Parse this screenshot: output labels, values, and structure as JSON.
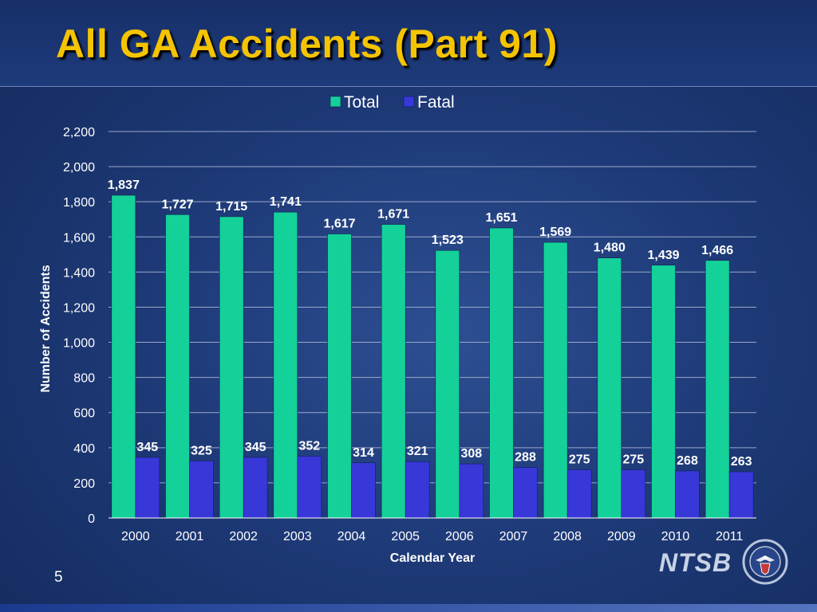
{
  "slide": {
    "title": "All GA Accidents (Part 91)",
    "page_number": "5",
    "logo_text": "NTSB"
  },
  "colors": {
    "total": "#14d19a",
    "fatal": "#3838d8",
    "title": "#f5c400"
  },
  "chart_data": {
    "type": "bar",
    "categories": [
      "2000",
      "2001",
      "2002",
      "2003",
      "2004",
      "2005",
      "2006",
      "2007",
      "2008",
      "2009",
      "2010",
      "2011"
    ],
    "series": [
      {
        "name": "Total",
        "values": [
          1837,
          1727,
          1715,
          1741,
          1617,
          1671,
          1523,
          1651,
          1569,
          1480,
          1439,
          1466
        ],
        "labels": [
          "1,837",
          "1,727",
          "1,715",
          "1,741",
          "1,617",
          "1,671",
          "1,523",
          "1,651",
          "1,569",
          "1,480",
          "1,439",
          "1,466"
        ]
      },
      {
        "name": "Fatal",
        "values": [
          345,
          325,
          345,
          352,
          314,
          321,
          308,
          288,
          275,
          275,
          268,
          263
        ],
        "labels": [
          "345",
          "325",
          "345",
          "352",
          "314",
          "321",
          "308",
          "288",
          "275",
          "275",
          "268",
          "263"
        ]
      }
    ],
    "xlabel": "Calendar Year",
    "ylabel": "Number of Accidents",
    "ylim": [
      0,
      2200
    ],
    "yticks": [
      0,
      200,
      400,
      600,
      800,
      1000,
      1200,
      1400,
      1600,
      1800,
      2000,
      2200
    ],
    "ytick_labels": [
      "0",
      "200",
      "400",
      "600",
      "800",
      "1,000",
      "1,200",
      "1,400",
      "1,600",
      "1,800",
      "2,000",
      "2,200"
    ],
    "grid": true,
    "legend_position": "top-center"
  }
}
